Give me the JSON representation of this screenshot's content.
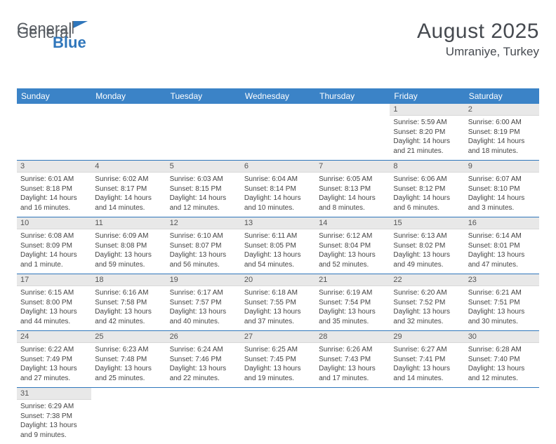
{
  "logo": {
    "text1": "General",
    "text2": "Blue"
  },
  "title": {
    "month": "August 2025",
    "location": "Umraniye, Turkey"
  },
  "colors": {
    "header_bg": "#3b83c7",
    "row_border": "#2f76bb",
    "daynum_bg": "#e8e8e8",
    "logo_gray": "#565b61",
    "logo_blue": "#2f76bb"
  },
  "weekdays": [
    "Sunday",
    "Monday",
    "Tuesday",
    "Wednesday",
    "Thursday",
    "Friday",
    "Saturday"
  ],
  "weeks": [
    [
      null,
      null,
      null,
      null,
      null,
      {
        "n": "1",
        "sr": "5:59 AM",
        "ss": "8:20 PM",
        "dl": "14 hours and 21 minutes."
      },
      {
        "n": "2",
        "sr": "6:00 AM",
        "ss": "8:19 PM",
        "dl": "14 hours and 18 minutes."
      }
    ],
    [
      {
        "n": "3",
        "sr": "6:01 AM",
        "ss": "8:18 PM",
        "dl": "14 hours and 16 minutes."
      },
      {
        "n": "4",
        "sr": "6:02 AM",
        "ss": "8:17 PM",
        "dl": "14 hours and 14 minutes."
      },
      {
        "n": "5",
        "sr": "6:03 AM",
        "ss": "8:15 PM",
        "dl": "14 hours and 12 minutes."
      },
      {
        "n": "6",
        "sr": "6:04 AM",
        "ss": "8:14 PM",
        "dl": "14 hours and 10 minutes."
      },
      {
        "n": "7",
        "sr": "6:05 AM",
        "ss": "8:13 PM",
        "dl": "14 hours and 8 minutes."
      },
      {
        "n": "8",
        "sr": "6:06 AM",
        "ss": "8:12 PM",
        "dl": "14 hours and 6 minutes."
      },
      {
        "n": "9",
        "sr": "6:07 AM",
        "ss": "8:10 PM",
        "dl": "14 hours and 3 minutes."
      }
    ],
    [
      {
        "n": "10",
        "sr": "6:08 AM",
        "ss": "8:09 PM",
        "dl": "14 hours and 1 minute."
      },
      {
        "n": "11",
        "sr": "6:09 AM",
        "ss": "8:08 PM",
        "dl": "13 hours and 59 minutes."
      },
      {
        "n": "12",
        "sr": "6:10 AM",
        "ss": "8:07 PM",
        "dl": "13 hours and 56 minutes."
      },
      {
        "n": "13",
        "sr": "6:11 AM",
        "ss": "8:05 PM",
        "dl": "13 hours and 54 minutes."
      },
      {
        "n": "14",
        "sr": "6:12 AM",
        "ss": "8:04 PM",
        "dl": "13 hours and 52 minutes."
      },
      {
        "n": "15",
        "sr": "6:13 AM",
        "ss": "8:02 PM",
        "dl": "13 hours and 49 minutes."
      },
      {
        "n": "16",
        "sr": "6:14 AM",
        "ss": "8:01 PM",
        "dl": "13 hours and 47 minutes."
      }
    ],
    [
      {
        "n": "17",
        "sr": "6:15 AM",
        "ss": "8:00 PM",
        "dl": "13 hours and 44 minutes."
      },
      {
        "n": "18",
        "sr": "6:16 AM",
        "ss": "7:58 PM",
        "dl": "13 hours and 42 minutes."
      },
      {
        "n": "19",
        "sr": "6:17 AM",
        "ss": "7:57 PM",
        "dl": "13 hours and 40 minutes."
      },
      {
        "n": "20",
        "sr": "6:18 AM",
        "ss": "7:55 PM",
        "dl": "13 hours and 37 minutes."
      },
      {
        "n": "21",
        "sr": "6:19 AM",
        "ss": "7:54 PM",
        "dl": "13 hours and 35 minutes."
      },
      {
        "n": "22",
        "sr": "6:20 AM",
        "ss": "7:52 PM",
        "dl": "13 hours and 32 minutes."
      },
      {
        "n": "23",
        "sr": "6:21 AM",
        "ss": "7:51 PM",
        "dl": "13 hours and 30 minutes."
      }
    ],
    [
      {
        "n": "24",
        "sr": "6:22 AM",
        "ss": "7:49 PM",
        "dl": "13 hours and 27 minutes."
      },
      {
        "n": "25",
        "sr": "6:23 AM",
        "ss": "7:48 PM",
        "dl": "13 hours and 25 minutes."
      },
      {
        "n": "26",
        "sr": "6:24 AM",
        "ss": "7:46 PM",
        "dl": "13 hours and 22 minutes."
      },
      {
        "n": "27",
        "sr": "6:25 AM",
        "ss": "7:45 PM",
        "dl": "13 hours and 19 minutes."
      },
      {
        "n": "28",
        "sr": "6:26 AM",
        "ss": "7:43 PM",
        "dl": "13 hours and 17 minutes."
      },
      {
        "n": "29",
        "sr": "6:27 AM",
        "ss": "7:41 PM",
        "dl": "13 hours and 14 minutes."
      },
      {
        "n": "30",
        "sr": "6:28 AM",
        "ss": "7:40 PM",
        "dl": "13 hours and 12 minutes."
      }
    ],
    [
      {
        "n": "31",
        "sr": "6:29 AM",
        "ss": "7:38 PM",
        "dl": "13 hours and 9 minutes."
      },
      null,
      null,
      null,
      null,
      null,
      null
    ]
  ],
  "labels": {
    "sunrise": "Sunrise: ",
    "sunset": "Sunset: ",
    "daylight": "Daylight: "
  }
}
